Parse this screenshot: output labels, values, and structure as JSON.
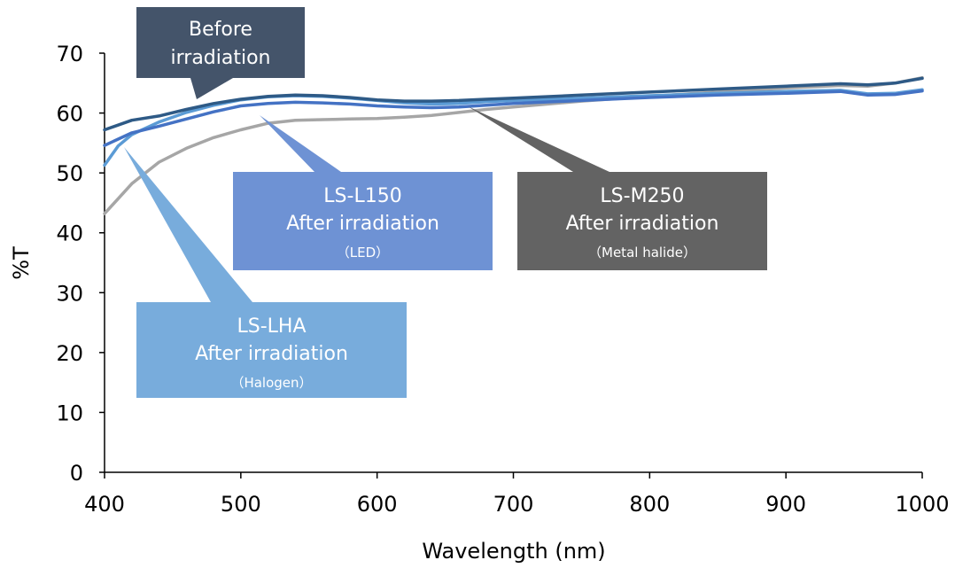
{
  "chart_data": {
    "type": "line",
    "xlabel": "Wavelength (nm)",
    "ylabel": "%T",
    "xlim": [
      400,
      1000
    ],
    "ylim": [
      0,
      70
    ],
    "x_ticks": [
      "400",
      "500",
      "600",
      "700",
      "800",
      "900",
      "1000"
    ],
    "y_ticks": [
      "0",
      "10",
      "20",
      "30",
      "40",
      "50",
      "60",
      "70"
    ],
    "grid": false,
    "legend": "none",
    "series": [
      {
        "id": "before",
        "color": "#2e5a86",
        "x": [
          400,
          420,
          440,
          460,
          480,
          500,
          520,
          540,
          560,
          580,
          600,
          620,
          640,
          660,
          680,
          700,
          750,
          800,
          850,
          900,
          940,
          960,
          980,
          1000
        ],
        "y": [
          57.2,
          58.8,
          59.5,
          60.6,
          61.6,
          62.3,
          62.8,
          63.0,
          62.9,
          62.6,
          62.2,
          62.0,
          62.0,
          62.1,
          62.3,
          62.5,
          63.0,
          63.5,
          64.0,
          64.5,
          64.9,
          64.7,
          65.0,
          65.8
        ]
      },
      {
        "id": "ls-l150",
        "color": "#4472c4",
        "x": [
          400,
          420,
          440,
          460,
          480,
          500,
          520,
          540,
          560,
          580,
          600,
          620,
          640,
          660,
          680,
          700,
          750,
          800,
          850,
          900,
          940,
          960,
          980,
          1000
        ],
        "y": [
          54.6,
          56.7,
          57.8,
          59.0,
          60.2,
          61.2,
          61.6,
          61.8,
          61.7,
          61.5,
          61.2,
          61.0,
          60.9,
          61.0,
          61.3,
          61.6,
          62.1,
          62.6,
          63.0,
          63.3,
          63.6,
          63.0,
          63.1,
          63.7
        ]
      },
      {
        "id": "ls-m250",
        "color": "#a6a6a6",
        "x": [
          400,
          420,
          440,
          460,
          480,
          500,
          520,
          540,
          560,
          580,
          600,
          620,
          640,
          660,
          680,
          700,
          750,
          800,
          850,
          900,
          940,
          960,
          980,
          1000
        ],
        "y": [
          43.2,
          48.2,
          51.8,
          54.1,
          55.9,
          57.2,
          58.3,
          58.8,
          58.9,
          59.0,
          59.1,
          59.3,
          59.6,
          60.1,
          60.6,
          61.0,
          62.0,
          62.8,
          63.5,
          64.2,
          64.6,
          64.5,
          65.0,
          65.9
        ]
      },
      {
        "id": "ls-lha",
        "color": "#5b9bd5",
        "x": [
          400,
          410,
          420,
          440,
          460,
          480,
          500,
          520,
          540,
          560,
          580,
          600,
          620,
          640,
          660,
          680,
          700,
          750,
          800,
          850,
          900,
          940,
          960,
          980,
          1000
        ],
        "y": [
          51.3,
          54.5,
          56.4,
          58.5,
          60.1,
          61.3,
          62.2,
          62.7,
          62.9,
          62.8,
          62.5,
          62.1,
          61.7,
          61.5,
          61.6,
          61.9,
          62.1,
          62.5,
          62.9,
          63.3,
          63.6,
          63.8,
          63.2,
          63.3,
          63.9
        ]
      }
    ],
    "callouts": [
      {
        "id": "before",
        "fill": "#44546a",
        "lines": [
          "Before",
          "irradiation"
        ]
      },
      {
        "id": "ls-l150",
        "fill": "#6e92d4",
        "lines": [
          "LS-L150",
          "After irradiation",
          "（LED）"
        ]
      },
      {
        "id": "ls-m250",
        "fill": "#636363",
        "lines": [
          "LS-M250",
          "After irradiation",
          "（Metal halide）"
        ]
      },
      {
        "id": "ls-lha",
        "fill": "#78acdc",
        "lines": [
          "LS-LHA",
          "After irradiation",
          "（Halogen）"
        ]
      }
    ]
  }
}
